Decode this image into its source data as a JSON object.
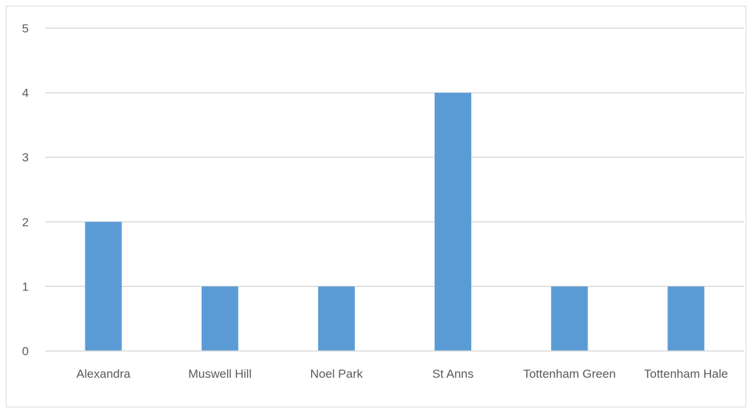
{
  "chart_data": {
    "type": "bar",
    "categories": [
      "Alexandra",
      "Muswell Hill",
      "Noel Park",
      "St Anns",
      "Tottenham Green",
      "Tottenham Hale"
    ],
    "values": [
      2,
      1,
      1,
      4,
      1,
      1
    ],
    "y_ticks": [
      "0",
      "1",
      "2",
      "3",
      "4",
      "5"
    ],
    "ylim": [
      0,
      5
    ],
    "grid": true,
    "legend": "none",
    "colors": {
      "bar": "#5b9bd5",
      "grid": "#d9d9d9",
      "axis": "#d9d9d9",
      "text": "#595959"
    }
  }
}
